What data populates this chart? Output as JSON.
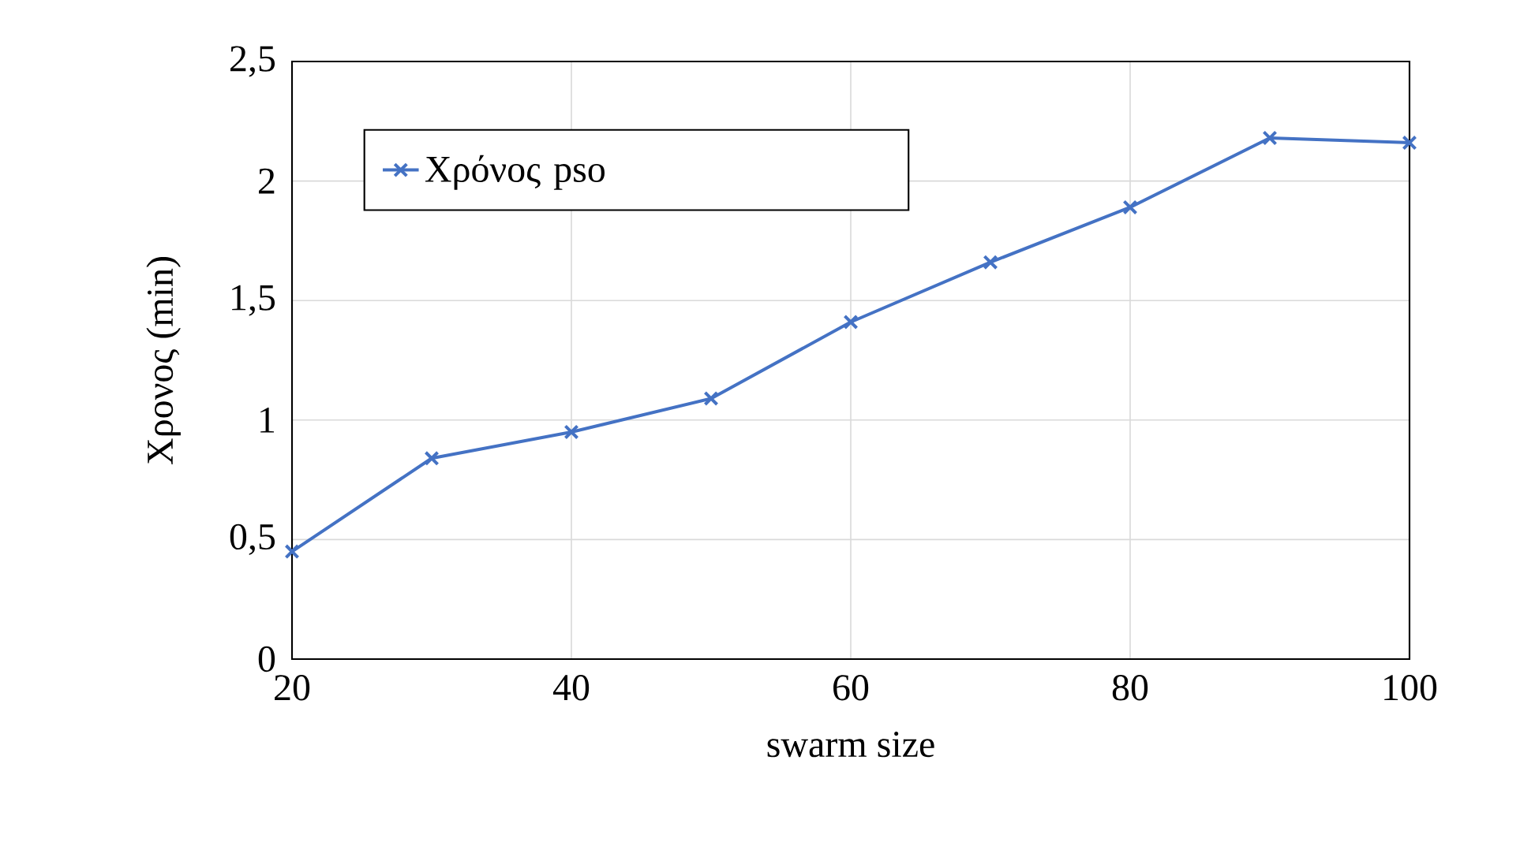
{
  "chart_data": {
    "type": "line",
    "xlabel": "swarm size",
    "ylabel": "Χρονος (min)",
    "x": [
      20,
      30,
      40,
      50,
      60,
      70,
      80,
      90,
      100
    ],
    "series": [
      {
        "name": "Χρόνος  pso",
        "color": "#4472c4",
        "values": [
          0.45,
          0.84,
          0.95,
          1.09,
          1.41,
          1.66,
          1.89,
          2.18,
          2.16
        ]
      }
    ],
    "xlim": [
      20,
      100
    ],
    "xticks": [
      20,
      40,
      60,
      80,
      100
    ],
    "ylim": [
      0,
      2.5
    ],
    "yticks": [
      0,
      {
        "value": 0.5,
        "label": "0,5"
      },
      1,
      {
        "value": 1.5,
        "label": "1,5"
      },
      2,
      {
        "value": 2.5,
        "label": "2,5"
      }
    ],
    "grid": true,
    "legend": "top left",
    "marker": "cross",
    "line_style": "solid"
  }
}
